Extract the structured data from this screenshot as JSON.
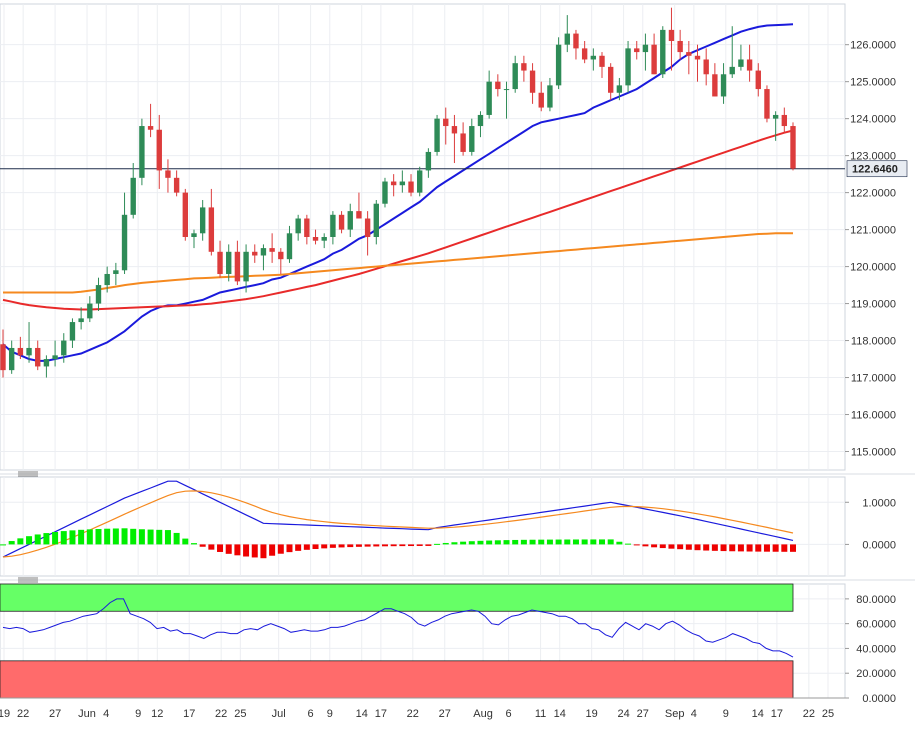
{
  "chart_data": [
    {
      "type": "candlestick",
      "panel": "price",
      "ylim": [
        114.5,
        127.1
      ],
      "y_ticks": [
        "126.0000",
        "125.0000",
        "124.0000",
        "123.0000",
        "122.0000",
        "121.0000",
        "120.0000",
        "119.0000",
        "118.0000",
        "117.0000",
        "116.0000",
        "115.0000"
      ],
      "y_tick_values": [
        126,
        125,
        124,
        123,
        122,
        121,
        120,
        119,
        118,
        117,
        116,
        115
      ],
      "current_price": 122.646,
      "current_price_label": "122.6460",
      "x_ticks": [
        "19",
        "22",
        "27",
        "Jun",
        "4",
        "9",
        "12",
        "17",
        "22",
        "25",
        "Jul",
        "6",
        "9",
        "14",
        "17",
        "22",
        "27",
        "Aug",
        "6",
        "11",
        "14",
        "19",
        "24",
        "27",
        "Sep",
        "4",
        "9",
        "14",
        "17",
        "22",
        "25"
      ],
      "candles": [
        [
          117.9,
          118.3,
          117.0,
          117.2
        ],
        [
          117.2,
          118.0,
          117.1,
          117.8
        ],
        [
          117.8,
          118.1,
          117.5,
          117.6
        ],
        [
          117.6,
          118.5,
          117.4,
          117.8
        ],
        [
          117.8,
          118.0,
          117.2,
          117.3
        ],
        [
          117.3,
          117.6,
          117.0,
          117.5
        ],
        [
          117.5,
          118.0,
          117.3,
          117.6
        ],
        [
          117.6,
          118.2,
          117.4,
          118.0
        ],
        [
          118.0,
          118.6,
          117.8,
          118.5
        ],
        [
          118.5,
          118.9,
          118.3,
          118.6
        ],
        [
          118.6,
          119.2,
          118.5,
          119.0
        ],
        [
          119.0,
          119.7,
          118.8,
          119.5
        ],
        [
          119.5,
          120.0,
          119.3,
          119.8
        ],
        [
          119.8,
          120.1,
          119.5,
          119.9
        ],
        [
          119.9,
          122.0,
          119.8,
          121.4
        ],
        [
          121.4,
          122.8,
          121.3,
          122.4
        ],
        [
          122.4,
          124.0,
          122.2,
          123.8
        ],
        [
          123.8,
          124.4,
          123.5,
          123.7
        ],
        [
          123.7,
          124.1,
          122.1,
          122.6
        ],
        [
          122.6,
          122.9,
          122.0,
          122.4
        ],
        [
          122.4,
          122.6,
          121.9,
          122.0
        ],
        [
          122.0,
          122.1,
          120.7,
          120.8
        ],
        [
          120.8,
          121.0,
          120.5,
          120.9
        ],
        [
          120.9,
          121.8,
          120.7,
          121.6
        ],
        [
          121.6,
          122.1,
          120.3,
          120.4
        ],
        [
          120.4,
          120.7,
          119.7,
          119.8
        ],
        [
          119.8,
          120.6,
          119.6,
          120.4
        ],
        [
          120.4,
          120.7,
          119.5,
          119.6
        ],
        [
          119.6,
          120.6,
          119.3,
          120.4
        ],
        [
          120.4,
          120.6,
          120.1,
          120.3
        ],
        [
          120.3,
          120.6,
          119.9,
          120.5
        ],
        [
          120.5,
          120.9,
          120.1,
          120.4
        ],
        [
          120.4,
          120.5,
          119.8,
          120.2
        ],
        [
          120.2,
          121.1,
          120.1,
          120.9
        ],
        [
          120.9,
          121.4,
          120.7,
          121.3
        ],
        [
          121.3,
          121.4,
          120.6,
          120.8
        ],
        [
          120.8,
          121.0,
          120.6,
          120.7
        ],
        [
          120.7,
          120.9,
          120.5,
          120.8
        ],
        [
          120.8,
          121.5,
          120.6,
          121.4
        ],
        [
          121.4,
          121.5,
          120.9,
          121.0
        ],
        [
          121.0,
          121.7,
          120.8,
          121.5
        ],
        [
          121.5,
          122.0,
          121.3,
          121.3
        ],
        [
          121.3,
          121.5,
          120.3,
          120.8
        ],
        [
          120.8,
          121.8,
          120.6,
          121.7
        ],
        [
          121.7,
          122.4,
          121.6,
          122.3
        ],
        [
          122.3,
          122.5,
          121.9,
          122.2
        ],
        [
          122.2,
          122.6,
          122.0,
          122.3
        ],
        [
          122.3,
          122.5,
          121.9,
          122.0
        ],
        [
          122.0,
          122.7,
          121.9,
          122.6
        ],
        [
          122.6,
          123.2,
          122.4,
          123.1
        ],
        [
          123.1,
          124.1,
          123.0,
          124.0
        ],
        [
          124.0,
          124.3,
          123.3,
          123.8
        ],
        [
          123.8,
          124.1,
          122.8,
          123.6
        ],
        [
          123.6,
          123.9,
          123.0,
          123.1
        ],
        [
          123.1,
          124.0,
          123.0,
          123.8
        ],
        [
          123.8,
          124.2,
          123.5,
          124.1
        ],
        [
          124.1,
          125.3,
          124.0,
          125.0
        ],
        [
          125.0,
          125.2,
          124.6,
          124.8
        ],
        [
          124.8,
          125.0,
          124.0,
          124.8
        ],
        [
          124.8,
          125.7,
          124.7,
          125.5
        ],
        [
          125.5,
          125.7,
          125.0,
          125.3
        ],
        [
          125.3,
          125.5,
          124.4,
          124.7
        ],
        [
          124.7,
          125.0,
          124.2,
          124.3
        ],
        [
          124.3,
          125.1,
          124.2,
          124.9
        ],
        [
          124.9,
          126.2,
          124.8,
          126.0
        ],
        [
          126.0,
          126.8,
          125.8,
          126.3
        ],
        [
          126.3,
          126.4,
          125.6,
          125.9
        ],
        [
          125.9,
          126.1,
          125.5,
          125.6
        ],
        [
          125.6,
          125.9,
          125.3,
          125.7
        ],
        [
          125.7,
          125.8,
          125.1,
          125.4
        ],
        [
          125.4,
          125.5,
          124.5,
          124.7
        ],
        [
          124.7,
          125.1,
          124.5,
          124.9
        ],
        [
          124.9,
          126.1,
          124.7,
          125.9
        ],
        [
          125.9,
          126.1,
          125.6,
          125.8
        ],
        [
          125.8,
          126.3,
          125.3,
          126.0
        ],
        [
          126.0,
          126.3,
          125.2,
          125.2
        ],
        [
          125.2,
          126.5,
          125.1,
          126.4
        ],
        [
          126.4,
          127.0,
          125.3,
          126.1
        ],
        [
          126.1,
          126.4,
          125.6,
          125.8
        ],
        [
          125.8,
          126.1,
          125.2,
          125.7
        ],
        [
          125.7,
          126.0,
          125.0,
          125.6
        ],
        [
          125.6,
          125.9,
          124.9,
          125.2
        ],
        [
          125.2,
          125.5,
          124.6,
          124.6
        ],
        [
          124.6,
          125.5,
          124.4,
          125.2
        ],
        [
          125.2,
          126.5,
          125.1,
          125.4
        ],
        [
          125.4,
          126.0,
          125.3,
          125.6
        ],
        [
          125.6,
          126.0,
          125.0,
          125.3
        ],
        [
          125.3,
          125.5,
          124.6,
          124.8
        ],
        [
          124.8,
          124.9,
          123.9,
          124.0
        ],
        [
          124.0,
          124.2,
          123.4,
          124.1
        ],
        [
          124.1,
          124.3,
          123.6,
          123.8
        ],
        [
          123.8,
          123.9,
          122.6,
          122.65
        ]
      ],
      "series": [
        {
          "name": "SMA 20",
          "color": "#1a1adc",
          "values": [
            117.9,
            117.7,
            117.6,
            117.5,
            117.45,
            117.45,
            117.5,
            117.55,
            117.6,
            117.65,
            117.75,
            117.85,
            117.95,
            118.1,
            118.25,
            118.45,
            118.65,
            118.8,
            118.9,
            118.95,
            118.95,
            119.0,
            119.05,
            119.1,
            119.2,
            119.3,
            119.35,
            119.4,
            119.45,
            119.5,
            119.55,
            119.65,
            119.7,
            119.8,
            119.9,
            120.0,
            120.1,
            120.2,
            120.35,
            120.45,
            120.6,
            120.75,
            120.85,
            121.0,
            121.15,
            121.3,
            121.45,
            121.6,
            121.75,
            121.95,
            122.15,
            122.3,
            122.45,
            122.6,
            122.75,
            122.9,
            123.05,
            123.2,
            123.35,
            123.5,
            123.65,
            123.8,
            123.9,
            123.95,
            124.0,
            124.05,
            124.1,
            124.15,
            124.3,
            124.4,
            124.5,
            124.6,
            124.7,
            124.8,
            124.95,
            125.1,
            125.25,
            125.4,
            125.6,
            125.75,
            125.85,
            125.95,
            126.05,
            126.15,
            126.25,
            126.35,
            126.42,
            126.48,
            126.52,
            126.53,
            126.54,
            126.55
          ]
        },
        {
          "name": "SMA 50",
          "color": "#e82a2a",
          "values": [
            119.1,
            119.05,
            119.0,
            118.96,
            118.93,
            118.9,
            118.88,
            118.86,
            118.85,
            118.84,
            118.84,
            118.85,
            118.86,
            118.87,
            118.88,
            118.89,
            118.9,
            118.91,
            118.92,
            118.93,
            118.94,
            118.95,
            118.96,
            118.98,
            119.0,
            119.03,
            119.06,
            119.09,
            119.12,
            119.16,
            119.2,
            119.25,
            119.3,
            119.35,
            119.4,
            119.45,
            119.5,
            119.56,
            119.62,
            119.68,
            119.74,
            119.8,
            119.87,
            119.94,
            120.01,
            120.08,
            120.15,
            120.22,
            120.29,
            120.36,
            120.44,
            120.52,
            120.6,
            120.68,
            120.76,
            120.84,
            120.92,
            121.0,
            121.08,
            121.16,
            121.24,
            121.32,
            121.4,
            121.48,
            121.56,
            121.64,
            121.72,
            121.8,
            121.88,
            121.96,
            122.04,
            122.12,
            122.2,
            122.28,
            122.36,
            122.44,
            122.52,
            122.6,
            122.68,
            122.76,
            122.84,
            122.92,
            123.0,
            123.08,
            123.16,
            123.24,
            123.32,
            123.4,
            123.48,
            123.55,
            123.62,
            123.68
          ]
        },
        {
          "name": "SMA 100",
          "color": "#f5891f",
          "values": [
            119.3,
            119.3,
            119.3,
            119.3,
            119.3,
            119.3,
            119.3,
            119.3,
            119.3,
            119.32,
            119.35,
            119.38,
            119.42,
            119.46,
            119.5,
            119.53,
            119.56,
            119.58,
            119.6,
            119.62,
            119.64,
            119.66,
            119.68,
            119.69,
            119.7,
            119.71,
            119.72,
            119.73,
            119.74,
            119.75,
            119.76,
            119.77,
            119.78,
            119.8,
            119.82,
            119.84,
            119.86,
            119.88,
            119.9,
            119.92,
            119.94,
            119.96,
            119.98,
            120.0,
            120.02,
            120.04,
            120.06,
            120.08,
            120.1,
            120.12,
            120.14,
            120.16,
            120.18,
            120.2,
            120.22,
            120.24,
            120.26,
            120.28,
            120.3,
            120.32,
            120.34,
            120.36,
            120.38,
            120.4,
            120.42,
            120.44,
            120.46,
            120.48,
            120.5,
            120.52,
            120.54,
            120.56,
            120.58,
            120.6,
            120.62,
            120.64,
            120.66,
            120.68,
            120.7,
            120.72,
            120.74,
            120.76,
            120.78,
            120.8,
            120.82,
            120.84,
            120.86,
            120.88,
            120.89,
            120.9,
            120.9,
            120.9
          ]
        }
      ]
    },
    {
      "type": "bar",
      "panel": "macd",
      "ylim": [
        -0.75,
        1.6
      ],
      "y_ticks": [
        "1.0000",
        "0.0000"
      ],
      "y_tick_values": [
        1,
        0
      ],
      "histogram_colors": {
        "positive": "#00ee00",
        "negative": "#ee0000"
      }
    },
    {
      "type": "line",
      "panel": "rsi",
      "ylim": [
        0,
        92
      ],
      "y_ticks": [
        "80.0000",
        "60.0000",
        "40.0000",
        "20.0000",
        "0.0000"
      ],
      "y_tick_values": [
        80,
        60,
        40,
        20,
        0
      ],
      "zones": [
        {
          "from": 70,
          "to": 92,
          "color": "#66ff66"
        },
        {
          "from": 0,
          "to": 30,
          "color": "#ff6b6b"
        }
      ],
      "values": [
        57,
        56,
        57,
        56,
        53,
        54,
        55,
        57,
        59,
        61,
        62,
        64,
        66,
        67,
        68,
        72,
        77,
        80,
        80,
        68,
        66,
        64,
        61,
        56,
        57,
        54,
        55,
        52,
        52,
        50,
        48,
        51,
        53,
        53,
        52,
        52,
        55,
        56,
        55,
        58,
        60,
        58,
        56,
        53,
        54,
        55,
        54,
        54,
        55,
        57,
        57,
        58,
        60,
        62,
        63,
        66,
        69,
        72,
        72,
        70,
        68,
        65,
        60,
        58,
        61,
        63,
        66,
        68,
        69,
        70,
        71,
        70,
        66,
        60,
        59,
        63,
        66,
        67,
        69,
        71,
        70,
        69,
        68,
        66,
        66,
        64,
        60,
        60,
        56,
        55,
        51,
        49,
        56,
        61,
        58,
        55,
        60,
        58,
        55,
        60,
        62,
        59,
        55,
        52,
        50,
        46,
        45,
        47,
        49,
        52,
        50,
        48,
        45,
        44,
        40,
        38,
        38,
        36,
        33
      ]
    }
  ]
}
